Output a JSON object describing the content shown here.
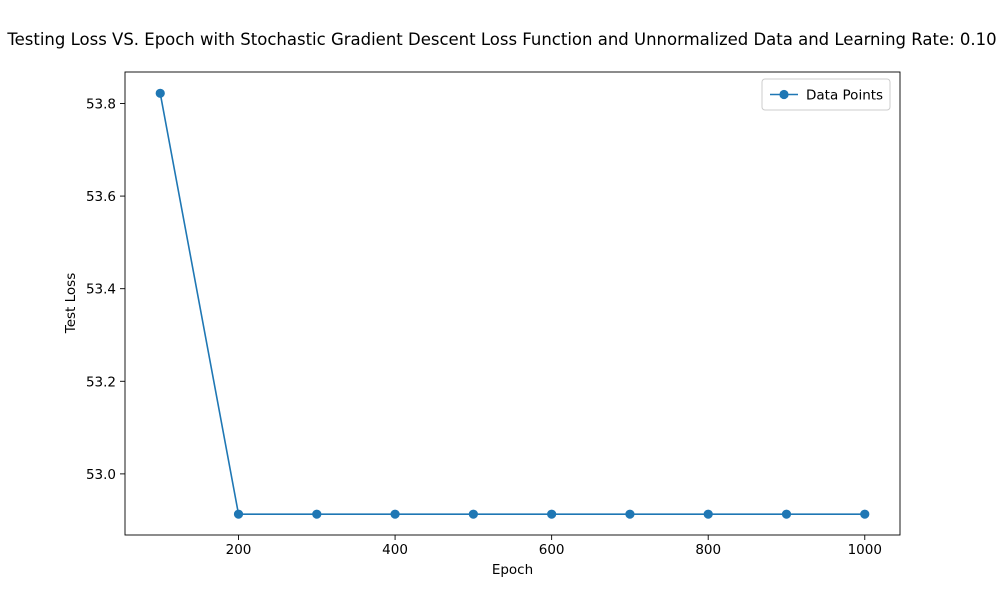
{
  "chart_data": {
    "type": "line",
    "title": "Testing Loss VS. Epoch with Stochastic Gradient Descent Loss Function and Unnormalized Data and Learning Rate: 0.10",
    "xlabel": "Epoch",
    "ylabel": "Test Loss",
    "x": [
      100,
      200,
      300,
      400,
      500,
      600,
      700,
      800,
      900,
      1000
    ],
    "series": [
      {
        "name": "Data Points",
        "values": [
          53.822,
          52.913,
          52.913,
          52.913,
          52.913,
          52.913,
          52.913,
          52.913,
          52.913,
          52.913
        ],
        "color": "#1f77b4",
        "marker": "circle"
      }
    ],
    "xlim": [
      55,
      1045
    ],
    "ylim": [
      52.868,
      53.868
    ],
    "xticks": [
      200,
      400,
      600,
      800,
      1000
    ],
    "yticks": [
      53.0,
      53.2,
      53.4,
      53.6,
      53.8
    ],
    "ytick_labels": [
      "53.0",
      "53.2",
      "53.4",
      "53.6",
      "53.8"
    ],
    "grid": false,
    "legend": "upper right"
  }
}
